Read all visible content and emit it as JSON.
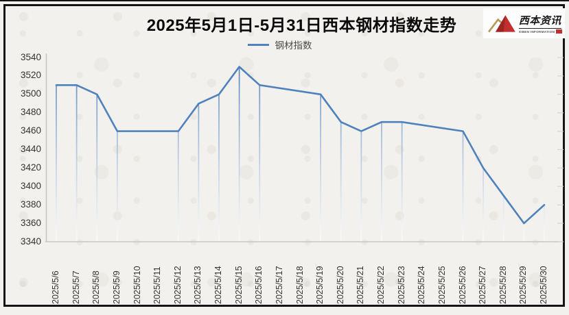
{
  "header": {
    "title": "2025年5月1日-5月31日西本钢材指数走势"
  },
  "legend": {
    "label": "钢材指数"
  },
  "logo": {
    "cn": "西本资讯",
    "en": "XIBEN INFORMATION",
    "mountain_icon": "mountain-peaks"
  },
  "colors": {
    "line": "#4f81bd",
    "axis": "#c9c6c1",
    "right_tick": "#d8d5d0",
    "labels": "#333333",
    "frame": "#141414",
    "background": "#f3f1ed",
    "logo_red": "#c22f2f",
    "logo_gold": "#b49a5f"
  },
  "chart_data": {
    "type": "line",
    "title": "2025年5月1日-5月31日西本钢材指数走势",
    "series": [
      {
        "name": "钢材指数",
        "color": "#4f81bd"
      }
    ],
    "x": [
      "2025/5/6",
      "2025/5/7",
      "2025/5/8",
      "2025/5/9",
      "2025/5/10",
      "2025/5/11",
      "2025/5/12",
      "2025/5/13",
      "2025/5/14",
      "2025/5/15",
      "2025/5/16",
      "2025/5/17",
      "2025/5/18",
      "2025/5/19",
      "2025/5/20",
      "2025/5/21",
      "2025/5/22",
      "2025/5/23",
      "2025/5/24",
      "2025/5/25",
      "2025/5/26",
      "2025/5/27",
      "2025/5/28",
      "2025/5/29",
      "2025/5/30"
    ],
    "values": [
      3510,
      3510,
      3500,
      3460,
      null,
      null,
      3460,
      3490,
      3500,
      3530,
      3510,
      null,
      null,
      3500,
      3470,
      3460,
      3470,
      3470,
      null,
      null,
      3460,
      3420,
      3390,
      3360,
      3380
    ],
    "ylim": [
      3340,
      3540
    ],
    "yticks": [
      3540,
      3520,
      3500,
      3480,
      3460,
      3440,
      3420,
      3400,
      3380,
      3360,
      3340
    ],
    "xlabel": "",
    "ylabel": "",
    "grid": false,
    "drop_lines": true,
    "legend_position": "top"
  }
}
